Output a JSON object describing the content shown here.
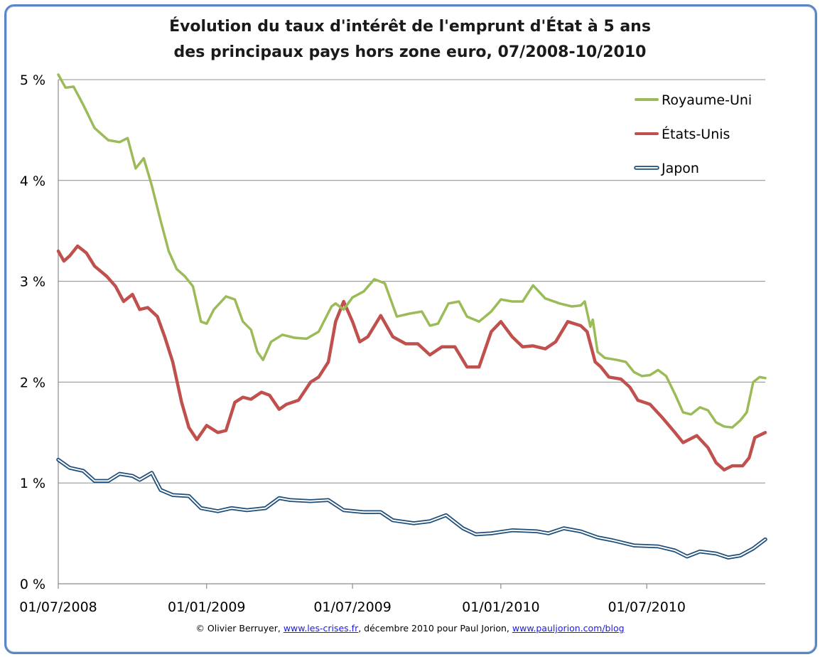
{
  "chart_data": {
    "type": "line",
    "title_line1": "Évolution du taux d'intérêt de l'emprunt d'État à 5 ans",
    "title_line2": "des principaux pays hors zone euro, 07/2008-10/2010",
    "x_ticks": [
      "01/07/2008",
      "01/01/2009",
      "01/07/2009",
      "01/01/2010",
      "01/07/2010"
    ],
    "y_ticks": [
      "0 %",
      "1 %",
      "2 %",
      "3 %",
      "4 %",
      "5 %"
    ],
    "ylim": [
      0,
      5
    ],
    "grid": true,
    "legend_position": "top-right",
    "colors": {
      "uk": "#9bbb59",
      "us": "#c0504d",
      "jp": "#1f4e79"
    },
    "series": [
      {
        "name": "Royaume-Uni",
        "key": "uk",
        "points": [
          [
            "2008-07-01",
            5.05
          ],
          [
            "2008-07-10",
            4.92
          ],
          [
            "2008-07-20",
            4.93
          ],
          [
            "2008-08-01",
            4.75
          ],
          [
            "2008-08-15",
            4.52
          ],
          [
            "2008-09-01",
            4.4
          ],
          [
            "2008-09-15",
            4.38
          ],
          [
            "2008-09-25",
            4.42
          ],
          [
            "2008-10-05",
            4.12
          ],
          [
            "2008-10-15",
            4.22
          ],
          [
            "2008-10-25",
            3.95
          ],
          [
            "2008-11-05",
            3.6
          ],
          [
            "2008-11-15",
            3.3
          ],
          [
            "2008-11-25",
            3.12
          ],
          [
            "2008-12-05",
            3.05
          ],
          [
            "2008-12-15",
            2.95
          ],
          [
            "2008-12-25",
            2.6
          ],
          [
            "2009-01-01",
            2.58
          ],
          [
            "2009-01-10",
            2.72
          ],
          [
            "2009-01-25",
            2.85
          ],
          [
            "2009-02-05",
            2.82
          ],
          [
            "2009-02-15",
            2.6
          ],
          [
            "2009-02-25",
            2.52
          ],
          [
            "2009-03-05",
            2.3
          ],
          [
            "2009-03-12",
            2.22
          ],
          [
            "2009-03-22",
            2.4
          ],
          [
            "2009-04-05",
            2.47
          ],
          [
            "2009-04-20",
            2.44
          ],
          [
            "2009-05-05",
            2.43
          ],
          [
            "2009-05-20",
            2.5
          ],
          [
            "2009-06-05",
            2.75
          ],
          [
            "2009-06-10",
            2.78
          ],
          [
            "2009-06-20",
            2.72
          ],
          [
            "2009-07-01",
            2.84
          ],
          [
            "2009-07-15",
            2.9
          ],
          [
            "2009-07-28",
            3.02
          ],
          [
            "2009-08-10",
            2.98
          ],
          [
            "2009-08-25",
            2.65
          ],
          [
            "2009-09-10",
            2.68
          ],
          [
            "2009-09-25",
            2.7
          ],
          [
            "2009-10-05",
            2.56
          ],
          [
            "2009-10-15",
            2.58
          ],
          [
            "2009-10-28",
            2.78
          ],
          [
            "2009-11-10",
            2.8
          ],
          [
            "2009-11-20",
            2.65
          ],
          [
            "2009-12-05",
            2.6
          ],
          [
            "2009-12-20",
            2.7
          ],
          [
            "2010-01-01",
            2.82
          ],
          [
            "2010-01-15",
            2.8
          ],
          [
            "2010-01-28",
            2.8
          ],
          [
            "2010-02-10",
            2.96
          ],
          [
            "2010-02-25",
            2.83
          ],
          [
            "2010-03-15",
            2.78
          ],
          [
            "2010-03-30",
            2.75
          ],
          [
            "2010-04-10",
            2.76
          ],
          [
            "2010-04-15",
            2.8
          ],
          [
            "2010-04-22",
            2.55
          ],
          [
            "2010-04-25",
            2.62
          ],
          [
            "2010-05-01",
            2.3
          ],
          [
            "2010-05-10",
            2.24
          ],
          [
            "2010-05-25",
            2.22
          ],
          [
            "2010-06-05",
            2.2
          ],
          [
            "2010-06-15",
            2.1
          ],
          [
            "2010-06-25",
            2.06
          ],
          [
            "2010-07-05",
            2.07
          ],
          [
            "2010-07-15",
            2.12
          ],
          [
            "2010-07-25",
            2.06
          ],
          [
            "2010-08-05",
            1.88
          ],
          [
            "2010-08-15",
            1.7
          ],
          [
            "2010-08-25",
            1.68
          ],
          [
            "2010-09-05",
            1.75
          ],
          [
            "2010-09-15",
            1.72
          ],
          [
            "2010-09-25",
            1.6
          ],
          [
            "2010-10-05",
            1.56
          ],
          [
            "2010-10-15",
            1.55
          ],
          [
            "2010-10-25",
            1.62
          ],
          [
            "2010-11-02",
            1.7
          ],
          [
            "2010-11-10",
            2.0
          ],
          [
            "2010-11-18",
            2.05
          ],
          [
            "2010-11-25",
            2.04
          ]
        ]
      },
      {
        "name": "États-Unis",
        "key": "us",
        "points": [
          [
            "2008-07-01",
            3.3
          ],
          [
            "2008-07-08",
            3.2
          ],
          [
            "2008-07-15",
            3.25
          ],
          [
            "2008-07-25",
            3.35
          ],
          [
            "2008-08-05",
            3.28
          ],
          [
            "2008-08-15",
            3.15
          ],
          [
            "2008-08-30",
            3.05
          ],
          [
            "2008-09-10",
            2.95
          ],
          [
            "2008-09-20",
            2.8
          ],
          [
            "2008-10-01",
            2.87
          ],
          [
            "2008-10-10",
            2.72
          ],
          [
            "2008-10-20",
            2.74
          ],
          [
            "2008-11-01",
            2.65
          ],
          [
            "2008-11-10",
            2.45
          ],
          [
            "2008-11-20",
            2.2
          ],
          [
            "2008-12-01",
            1.8
          ],
          [
            "2008-12-10",
            1.55
          ],
          [
            "2008-12-20",
            1.43
          ],
          [
            "2009-01-01",
            1.57
          ],
          [
            "2009-01-15",
            1.5
          ],
          [
            "2009-01-25",
            1.52
          ],
          [
            "2009-02-05",
            1.8
          ],
          [
            "2009-02-15",
            1.85
          ],
          [
            "2009-02-25",
            1.83
          ],
          [
            "2009-03-10",
            1.9
          ],
          [
            "2009-03-20",
            1.87
          ],
          [
            "2009-04-01",
            1.73
          ],
          [
            "2009-04-10",
            1.78
          ],
          [
            "2009-04-25",
            1.82
          ],
          [
            "2009-05-10",
            2.0
          ],
          [
            "2009-05-20",
            2.05
          ],
          [
            "2009-06-01",
            2.2
          ],
          [
            "2009-06-10",
            2.6
          ],
          [
            "2009-06-20",
            2.8
          ],
          [
            "2009-07-01",
            2.6
          ],
          [
            "2009-07-10",
            2.4
          ],
          [
            "2009-07-20",
            2.45
          ],
          [
            "2009-08-05",
            2.66
          ],
          [
            "2009-08-20",
            2.45
          ],
          [
            "2009-09-05",
            2.38
          ],
          [
            "2009-09-20",
            2.38
          ],
          [
            "2009-10-05",
            2.27
          ],
          [
            "2009-10-20",
            2.35
          ],
          [
            "2009-11-05",
            2.35
          ],
          [
            "2009-11-20",
            2.15
          ],
          [
            "2009-12-05",
            2.15
          ],
          [
            "2009-12-20",
            2.5
          ],
          [
            "2010-01-01",
            2.6
          ],
          [
            "2010-01-15",
            2.45
          ],
          [
            "2010-01-28",
            2.35
          ],
          [
            "2010-02-10",
            2.36
          ],
          [
            "2010-02-25",
            2.33
          ],
          [
            "2010-03-10",
            2.4
          ],
          [
            "2010-03-25",
            2.6
          ],
          [
            "2010-04-10",
            2.56
          ],
          [
            "2010-04-18",
            2.5
          ],
          [
            "2010-04-28",
            2.2
          ],
          [
            "2010-05-05",
            2.15
          ],
          [
            "2010-05-15",
            2.05
          ],
          [
            "2010-05-30",
            2.03
          ],
          [
            "2010-06-10",
            1.95
          ],
          [
            "2010-06-20",
            1.82
          ],
          [
            "2010-07-05",
            1.78
          ],
          [
            "2010-07-20",
            1.65
          ],
          [
            "2010-08-05",
            1.5
          ],
          [
            "2010-08-15",
            1.4
          ],
          [
            "2010-09-01",
            1.47
          ],
          [
            "2010-09-15",
            1.35
          ],
          [
            "2010-09-25",
            1.2
          ],
          [
            "2010-10-05",
            1.13
          ],
          [
            "2010-10-15",
            1.17
          ],
          [
            "2010-10-28",
            1.17
          ],
          [
            "2010-11-05",
            1.25
          ],
          [
            "2010-11-12",
            1.45
          ],
          [
            "2010-11-25",
            1.5
          ]
        ]
      },
      {
        "name": "Japon",
        "key": "jp",
        "points": [
          [
            "2008-07-01",
            1.23
          ],
          [
            "2008-07-15",
            1.15
          ],
          [
            "2008-08-01",
            1.12
          ],
          [
            "2008-08-15",
            1.02
          ],
          [
            "2008-09-01",
            1.02
          ],
          [
            "2008-09-15",
            1.09
          ],
          [
            "2008-10-01",
            1.07
          ],
          [
            "2008-10-10",
            1.03
          ],
          [
            "2008-10-25",
            1.1
          ],
          [
            "2008-11-05",
            0.93
          ],
          [
            "2008-11-20",
            0.88
          ],
          [
            "2008-12-10",
            0.87
          ],
          [
            "2008-12-25",
            0.75
          ],
          [
            "2009-01-15",
            0.72
          ],
          [
            "2009-02-01",
            0.75
          ],
          [
            "2009-02-20",
            0.73
          ],
          [
            "2009-03-15",
            0.75
          ],
          [
            "2009-04-01",
            0.85
          ],
          [
            "2009-04-15",
            0.83
          ],
          [
            "2009-05-10",
            0.82
          ],
          [
            "2009-06-01",
            0.83
          ],
          [
            "2009-06-20",
            0.73
          ],
          [
            "2009-07-15",
            0.71
          ],
          [
            "2009-08-05",
            0.71
          ],
          [
            "2009-08-20",
            0.63
          ],
          [
            "2009-09-15",
            0.6
          ],
          [
            "2009-10-05",
            0.62
          ],
          [
            "2009-10-25",
            0.68
          ],
          [
            "2009-11-15",
            0.55
          ],
          [
            "2009-12-01",
            0.49
          ],
          [
            "2009-12-20",
            0.5
          ],
          [
            "2010-01-15",
            0.53
          ],
          [
            "2010-02-15",
            0.52
          ],
          [
            "2010-03-01",
            0.5
          ],
          [
            "2010-03-20",
            0.55
          ],
          [
            "2010-04-10",
            0.52
          ],
          [
            "2010-05-01",
            0.46
          ],
          [
            "2010-05-20",
            0.43
          ],
          [
            "2010-06-15",
            0.38
          ],
          [
            "2010-07-15",
            0.37
          ],
          [
            "2010-08-05",
            0.33
          ],
          [
            "2010-08-20",
            0.27
          ],
          [
            "2010-09-05",
            0.32
          ],
          [
            "2010-09-25",
            0.3
          ],
          [
            "2010-10-10",
            0.26
          ],
          [
            "2010-10-25",
            0.28
          ],
          [
            "2010-11-10",
            0.35
          ],
          [
            "2010-11-25",
            0.44
          ]
        ]
      }
    ]
  },
  "credit": {
    "prefix": "© Olivier Berruyer, ",
    "link1": "www.les-crises.fr",
    "middle": ", décembre 2010 pour  Paul Jorion, ",
    "link2": "www.pauljorion.com/blog"
  }
}
